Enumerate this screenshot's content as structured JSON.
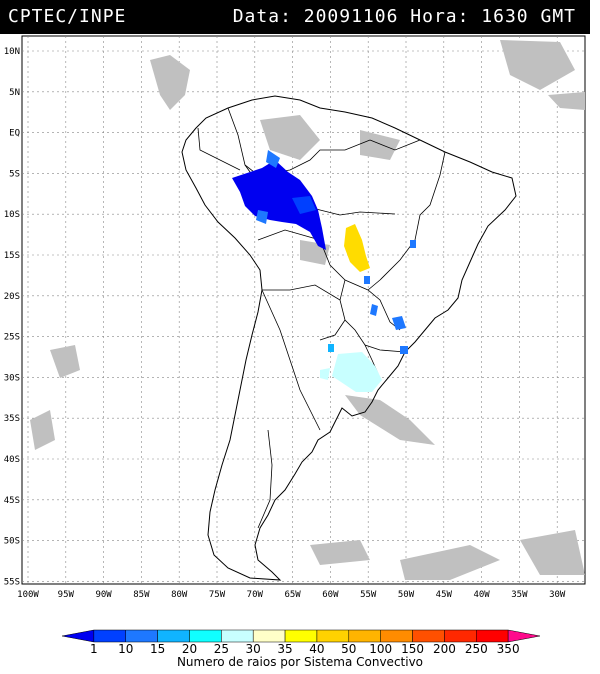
{
  "header": {
    "source": "CPTEC/INPE",
    "datetime": "Data: 20091106 Hora: 1630 GMT"
  },
  "map": {
    "lat_labels": [
      "10N",
      "5N",
      "EQ",
      "5S",
      "10S",
      "15S",
      "20S",
      "25S",
      "30S",
      "35S",
      "40S",
      "45S",
      "50S",
      "55S"
    ],
    "lon_labels": [
      "100W",
      "95W",
      "90W",
      "85W",
      "80W",
      "75W",
      "70W",
      "65W",
      "60W",
      "55W",
      "50W",
      "45W",
      "40W",
      "35W",
      "30W"
    ]
  },
  "legend": {
    "title": "Numero de raios por Sistema Convectivo",
    "values": [
      "1",
      "10",
      "15",
      "20",
      "25",
      "30",
      "35",
      "40",
      "50",
      "100",
      "150",
      "200",
      "250",
      "350"
    ],
    "colors": [
      "#0000f0",
      "#0040ff",
      "#1e78ff",
      "#10b4ff",
      "#10ffff",
      "#c8ffff",
      "#ffffc8",
      "#ffff00",
      "#ffd200",
      "#ffb400",
      "#ff8c00",
      "#ff5000",
      "#ff2800",
      "#ff0000",
      "#ff0a8c"
    ]
  }
}
